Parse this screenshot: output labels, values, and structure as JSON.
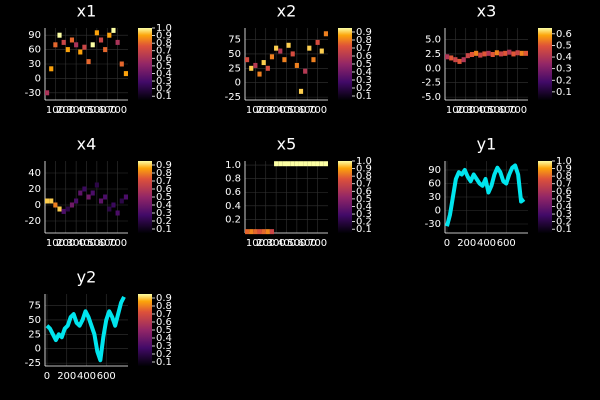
{
  "chart_data": [
    {
      "type": "heatmap",
      "title": "x1",
      "colormap": "inferno",
      "x": [
        20,
        60,
        100,
        140,
        180,
        220,
        260,
        300,
        340,
        380,
        420,
        460,
        500,
        540,
        580,
        620,
        660,
        700,
        740,
        780
      ],
      "y": [
        -30,
        20,
        70,
        90,
        75,
        60,
        80,
        70,
        55,
        65,
        35,
        70,
        95,
        80,
        60,
        90,
        100,
        75,
        30,
        10
      ],
      "z": [
        0.6,
        0.9,
        0.8,
        1.0,
        0.7,
        0.9,
        0.8,
        0.6,
        0.9,
        0.7,
        0.8,
        1.0,
        0.9,
        0.7,
        0.8,
        0.9,
        1.0,
        0.6,
        0.8,
        0.9
      ],
      "xlim": [
        0,
        800
      ],
      "xticks": [
        100,
        200,
        300,
        400,
        500,
        600,
        700
      ],
      "ylim": [
        -45,
        105
      ],
      "yticks": [
        -30,
        0,
        30,
        60,
        90
      ],
      "clim": [
        0.05,
        1.0
      ],
      "cticks": [
        0.1,
        0.2,
        0.3,
        0.4,
        0.5,
        0.6,
        0.7,
        0.8,
        0.9,
        {
          "value": 1,
          "label": "1.0"
        }
      ]
    },
    {
      "type": "heatmap",
      "title": "x2",
      "colormap": "inferno",
      "x": [
        20,
        60,
        100,
        140,
        180,
        220,
        260,
        300,
        340,
        380,
        420,
        460,
        500,
        540,
        580,
        620,
        660,
        700,
        740,
        780
      ],
      "y": [
        40,
        25,
        30,
        15,
        35,
        25,
        45,
        60,
        55,
        40,
        65,
        50,
        30,
        -15,
        20,
        60,
        40,
        70,
        55,
        85
      ],
      "z": [
        0.7,
        0.9,
        0.6,
        0.8,
        0.9,
        0.7,
        0.8,
        0.9,
        0.6,
        0.8,
        0.9,
        0.7,
        0.8,
        0.9,
        0.6,
        0.9,
        0.8,
        0.7,
        0.9,
        0.8
      ],
      "xlim": [
        0,
        800
      ],
      "xticks": [
        100,
        200,
        300,
        400,
        500,
        600,
        700
      ],
      "ylim": [
        -30,
        95
      ],
      "yticks": [
        -25,
        0,
        25,
        50,
        75
      ],
      "clim": [
        0.05,
        0.95
      ],
      "cticks": [
        0.1,
        0.2,
        0.3,
        0.4,
        0.5,
        0.6,
        0.7,
        0.8,
        0.9
      ]
    },
    {
      "type": "heatmap",
      "title": "x3",
      "colormap": "inferno",
      "x": [
        20,
        60,
        100,
        140,
        180,
        220,
        260,
        300,
        340,
        380,
        420,
        460,
        500,
        540,
        580,
        620,
        660,
        700,
        740,
        780
      ],
      "y": [
        2,
        1.8,
        1.5,
        1.2,
        1.5,
        2.2,
        2.4,
        2.6,
        2.3,
        2.5,
        2.6,
        2.4,
        2.7,
        2.5,
        2.6,
        2.8,
        2.5,
        2.7,
        2.6,
        2.6
      ],
      "z": [
        0.4,
        0.5,
        0.45,
        0.5,
        0.4,
        0.45,
        0.5,
        0.55,
        0.45,
        0.5,
        0.4,
        0.5,
        0.55,
        0.45,
        0.5,
        0.4,
        0.5,
        0.45,
        0.55,
        0.5
      ],
      "xlim": [
        0,
        800
      ],
      "xticks": [
        100,
        200,
        300,
        400,
        500,
        600,
        700
      ],
      "ylim": [
        -5.5,
        7
      ],
      "yticks": [
        {
          "value": -5,
          "label": "-5.0"
        },
        {
          "value": -2.5,
          "label": "-2.5"
        },
        {
          "value": 0,
          "label": "0.0"
        },
        {
          "value": 2.5,
          "label": "2.5"
        },
        {
          "value": 5,
          "label": "5.0"
        }
      ],
      "clim": [
        0.03,
        0.65
      ],
      "cticks": [
        0.1,
        0.2,
        0.3,
        0.4,
        0.5,
        0.6
      ]
    },
    {
      "type": "heatmap",
      "title": "x4",
      "colormap": "inferno",
      "x": [
        20,
        60,
        100,
        140,
        180,
        220,
        260,
        300,
        340,
        380,
        420,
        460,
        500,
        540,
        580,
        620,
        660,
        700,
        740,
        780
      ],
      "y": [
        5,
        5,
        0,
        -5,
        -8,
        -5,
        0,
        5,
        15,
        20,
        10,
        15,
        25,
        5,
        10,
        -5,
        0,
        -10,
        5,
        10
      ],
      "z": [
        0.9,
        0.9,
        0.8,
        0.9,
        0.3,
        0.2,
        0.4,
        0.3,
        0.35,
        0.25,
        0.4,
        0.3,
        0.2,
        0.35,
        0.3,
        0.2,
        0.25,
        0.3,
        0.2,
        0.3
      ],
      "xlim": [
        0,
        800
      ],
      "xticks": [
        100,
        200,
        300,
        400,
        500,
        600,
        700
      ],
      "ylim": [
        -35,
        55
      ],
      "yticks": [
        -20,
        0,
        20,
        40
      ],
      "clim": [
        0.05,
        0.95
      ],
      "cticks": [
        0.1,
        0.2,
        0.3,
        0.4,
        0.5,
        0.6,
        0.7,
        0.8,
        0.9
      ]
    },
    {
      "type": "heatmap",
      "title": "x5",
      "colormap": "inferno",
      "x": [
        20,
        60,
        100,
        140,
        180,
        220,
        260,
        300,
        340,
        380,
        420,
        460,
        500,
        540,
        580,
        620,
        660,
        700,
        740,
        780
      ],
      "y": [
        0.02,
        0.02,
        0.02,
        0.02,
        0.02,
        0.02,
        0.02,
        1.02,
        1.02,
        1.02,
        1.02,
        1.02,
        1.02,
        1.02,
        1.02,
        1.02,
        1.02,
        1.02,
        1.02,
        1.02
      ],
      "z": [
        0.8,
        0.85,
        0.8,
        0.75,
        0.8,
        0.85,
        0.7,
        1.0,
        1.0,
        1.0,
        1.0,
        1.0,
        1.0,
        1.0,
        1.0,
        1.0,
        1.0,
        1.0,
        1.0,
        1.0
      ],
      "xlim": [
        0,
        800
      ],
      "xticks": [
        100,
        200,
        300,
        400,
        500,
        600,
        700
      ],
      "ylim": [
        0,
        1.06
      ],
      "yticks": [
        0.2,
        0.4,
        0.6,
        0.8,
        {
          "value": 1,
          "label": "1.0"
        }
      ],
      "clim": [
        0.05,
        1.0
      ],
      "cticks": [
        0.1,
        0.2,
        0.3,
        0.4,
        0.5,
        0.6,
        0.7,
        0.8,
        0.9,
        {
          "value": 1,
          "label": "1.0"
        }
      ]
    },
    {
      "type": "line",
      "title": "y1",
      "color": "#00e5ee",
      "colormap": "inferno",
      "x": [
        0,
        30,
        60,
        90,
        120,
        150,
        180,
        210,
        240,
        270,
        300,
        330,
        360,
        390,
        420,
        450,
        480,
        510,
        540,
        570,
        600,
        630,
        660,
        690,
        720,
        750,
        780
      ],
      "values": [
        -35,
        -10,
        30,
        70,
        85,
        80,
        90,
        75,
        65,
        80,
        70,
        60,
        55,
        70,
        40,
        55,
        80,
        95,
        85,
        65,
        60,
        80,
        95,
        100,
        80,
        20,
        25
      ],
      "xlim": [
        -20,
        820
      ],
      "xticks": [
        0,
        200,
        400,
        600
      ],
      "ylim": [
        -50,
        110
      ],
      "yticks": [
        -30,
        0,
        30,
        60,
        90
      ],
      "clim": [
        0.05,
        1.0
      ],
      "cticks": [
        0.1,
        0.2,
        0.3,
        0.4,
        0.5,
        0.6,
        0.7,
        0.8,
        0.9,
        {
          "value": 1,
          "label": "1.0"
        }
      ]
    },
    {
      "type": "line",
      "title": "y2",
      "color": "#00e5ee",
      "colormap": "inferno",
      "x": [
        0,
        30,
        60,
        90,
        120,
        150,
        180,
        210,
        240,
        270,
        300,
        330,
        360,
        390,
        420,
        450,
        480,
        510,
        540,
        570,
        600,
        630,
        660,
        690,
        720,
        750,
        780
      ],
      "values": [
        40,
        35,
        25,
        15,
        25,
        20,
        35,
        40,
        55,
        60,
        45,
        40,
        50,
        65,
        55,
        40,
        25,
        -5,
        -20,
        20,
        50,
        65,
        55,
        40,
        60,
        80,
        90
      ],
      "xlim": [
        -20,
        820
      ],
      "xticks": [
        0,
        200,
        400,
        600
      ],
      "ylim": [
        -30,
        95
      ],
      "yticks": [
        -25,
        0,
        25,
        50,
        75
      ],
      "clim": [
        0.05,
        0.95
      ],
      "cticks": [
        0.1,
        0.2,
        0.3,
        0.4,
        0.5,
        0.6,
        0.7,
        0.8,
        0.9
      ]
    }
  ]
}
